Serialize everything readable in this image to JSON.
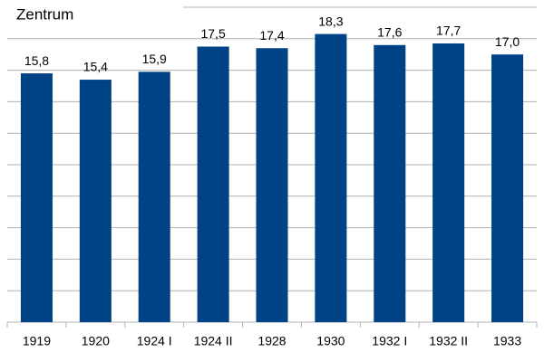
{
  "chart_data": {
    "type": "bar",
    "title": "Zentrum",
    "categories": [
      "1919",
      "1920",
      "1924 I",
      "1924 II",
      "1928",
      "1930",
      "1932 I",
      "1932 II",
      "1933"
    ],
    "values": [
      15.8,
      15.4,
      15.9,
      17.5,
      17.4,
      18.3,
      17.6,
      17.7,
      17.0
    ],
    "value_labels": [
      "15,8",
      "15,4",
      "15,9",
      "17,5",
      "17,4",
      "18,3",
      "17,6",
      "17,7",
      "17,0"
    ],
    "color": "#004286",
    "ylim": [
      0,
      20
    ],
    "yticks": [
      0,
      2,
      4,
      6,
      8,
      10,
      12,
      14,
      16,
      18,
      20
    ],
    "grid": true
  }
}
